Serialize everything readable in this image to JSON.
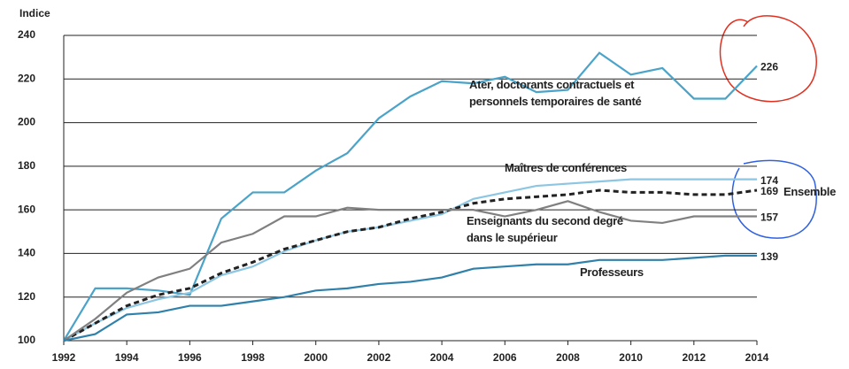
{
  "chart_data": {
    "type": "line",
    "y_label": "Indice",
    "x": [
      1992,
      1993,
      1994,
      1995,
      1996,
      1997,
      1998,
      1999,
      2000,
      2001,
      2002,
      2003,
      2004,
      2005,
      2006,
      2007,
      2008,
      2009,
      2010,
      2011,
      2012,
      2013,
      2014
    ],
    "xlim": [
      1992,
      2014
    ],
    "xticks": [
      1992,
      1994,
      1996,
      1998,
      2000,
      2002,
      2004,
      2006,
      2008,
      2010,
      2012,
      2014
    ],
    "ylim": [
      100,
      240
    ],
    "yticks": [
      100,
      120,
      140,
      160,
      180,
      200,
      220,
      240
    ],
    "grid": true,
    "series": [
      {
        "name": "Ater, doctorants contractuels et personnels temporaires de santé",
        "color": "#4aa3c8",
        "dashed": false,
        "values": [
          100,
          124,
          124,
          123,
          121,
          156,
          168,
          168,
          178,
          186,
          202,
          212,
          219,
          218,
          221,
          214,
          215,
          232,
          222,
          225,
          211,
          211,
          226
        ]
      },
      {
        "name": "Maîtres de conférences",
        "color": "#8cc6e2",
        "dashed": false,
        "values": [
          100,
          108,
          115,
          119,
          122,
          130,
          134,
          141,
          146,
          150,
          152,
          155,
          158,
          165,
          168,
          171,
          172,
          173,
          174,
          174,
          174,
          174,
          174
        ]
      },
      {
        "name": "Ensemble",
        "color": "#222222",
        "dashed": true,
        "values": [
          100,
          108,
          116,
          121,
          124,
          131,
          136,
          142,
          146,
          150,
          152,
          156,
          159,
          163,
          165,
          166,
          167,
          169,
          168,
          168,
          167,
          167,
          169
        ]
      },
      {
        "name": "Enseignants du second degré dans le supérieur",
        "color": "#808080",
        "dashed": false,
        "values": [
          100,
          110,
          122,
          129,
          133,
          145,
          149,
          157,
          157,
          161,
          160,
          160,
          160,
          160,
          157,
          160,
          164,
          159,
          155,
          154,
          157,
          157,
          157
        ]
      },
      {
        "name": "Professeurs",
        "color": "#2f80aa",
        "dashed": false,
        "values": [
          100,
          103,
          112,
          113,
          116,
          116,
          118,
          120,
          123,
          124,
          126,
          127,
          129,
          133,
          134,
          135,
          135,
          137,
          137,
          137,
          138,
          139,
          139
        ]
      }
    ]
  }
}
